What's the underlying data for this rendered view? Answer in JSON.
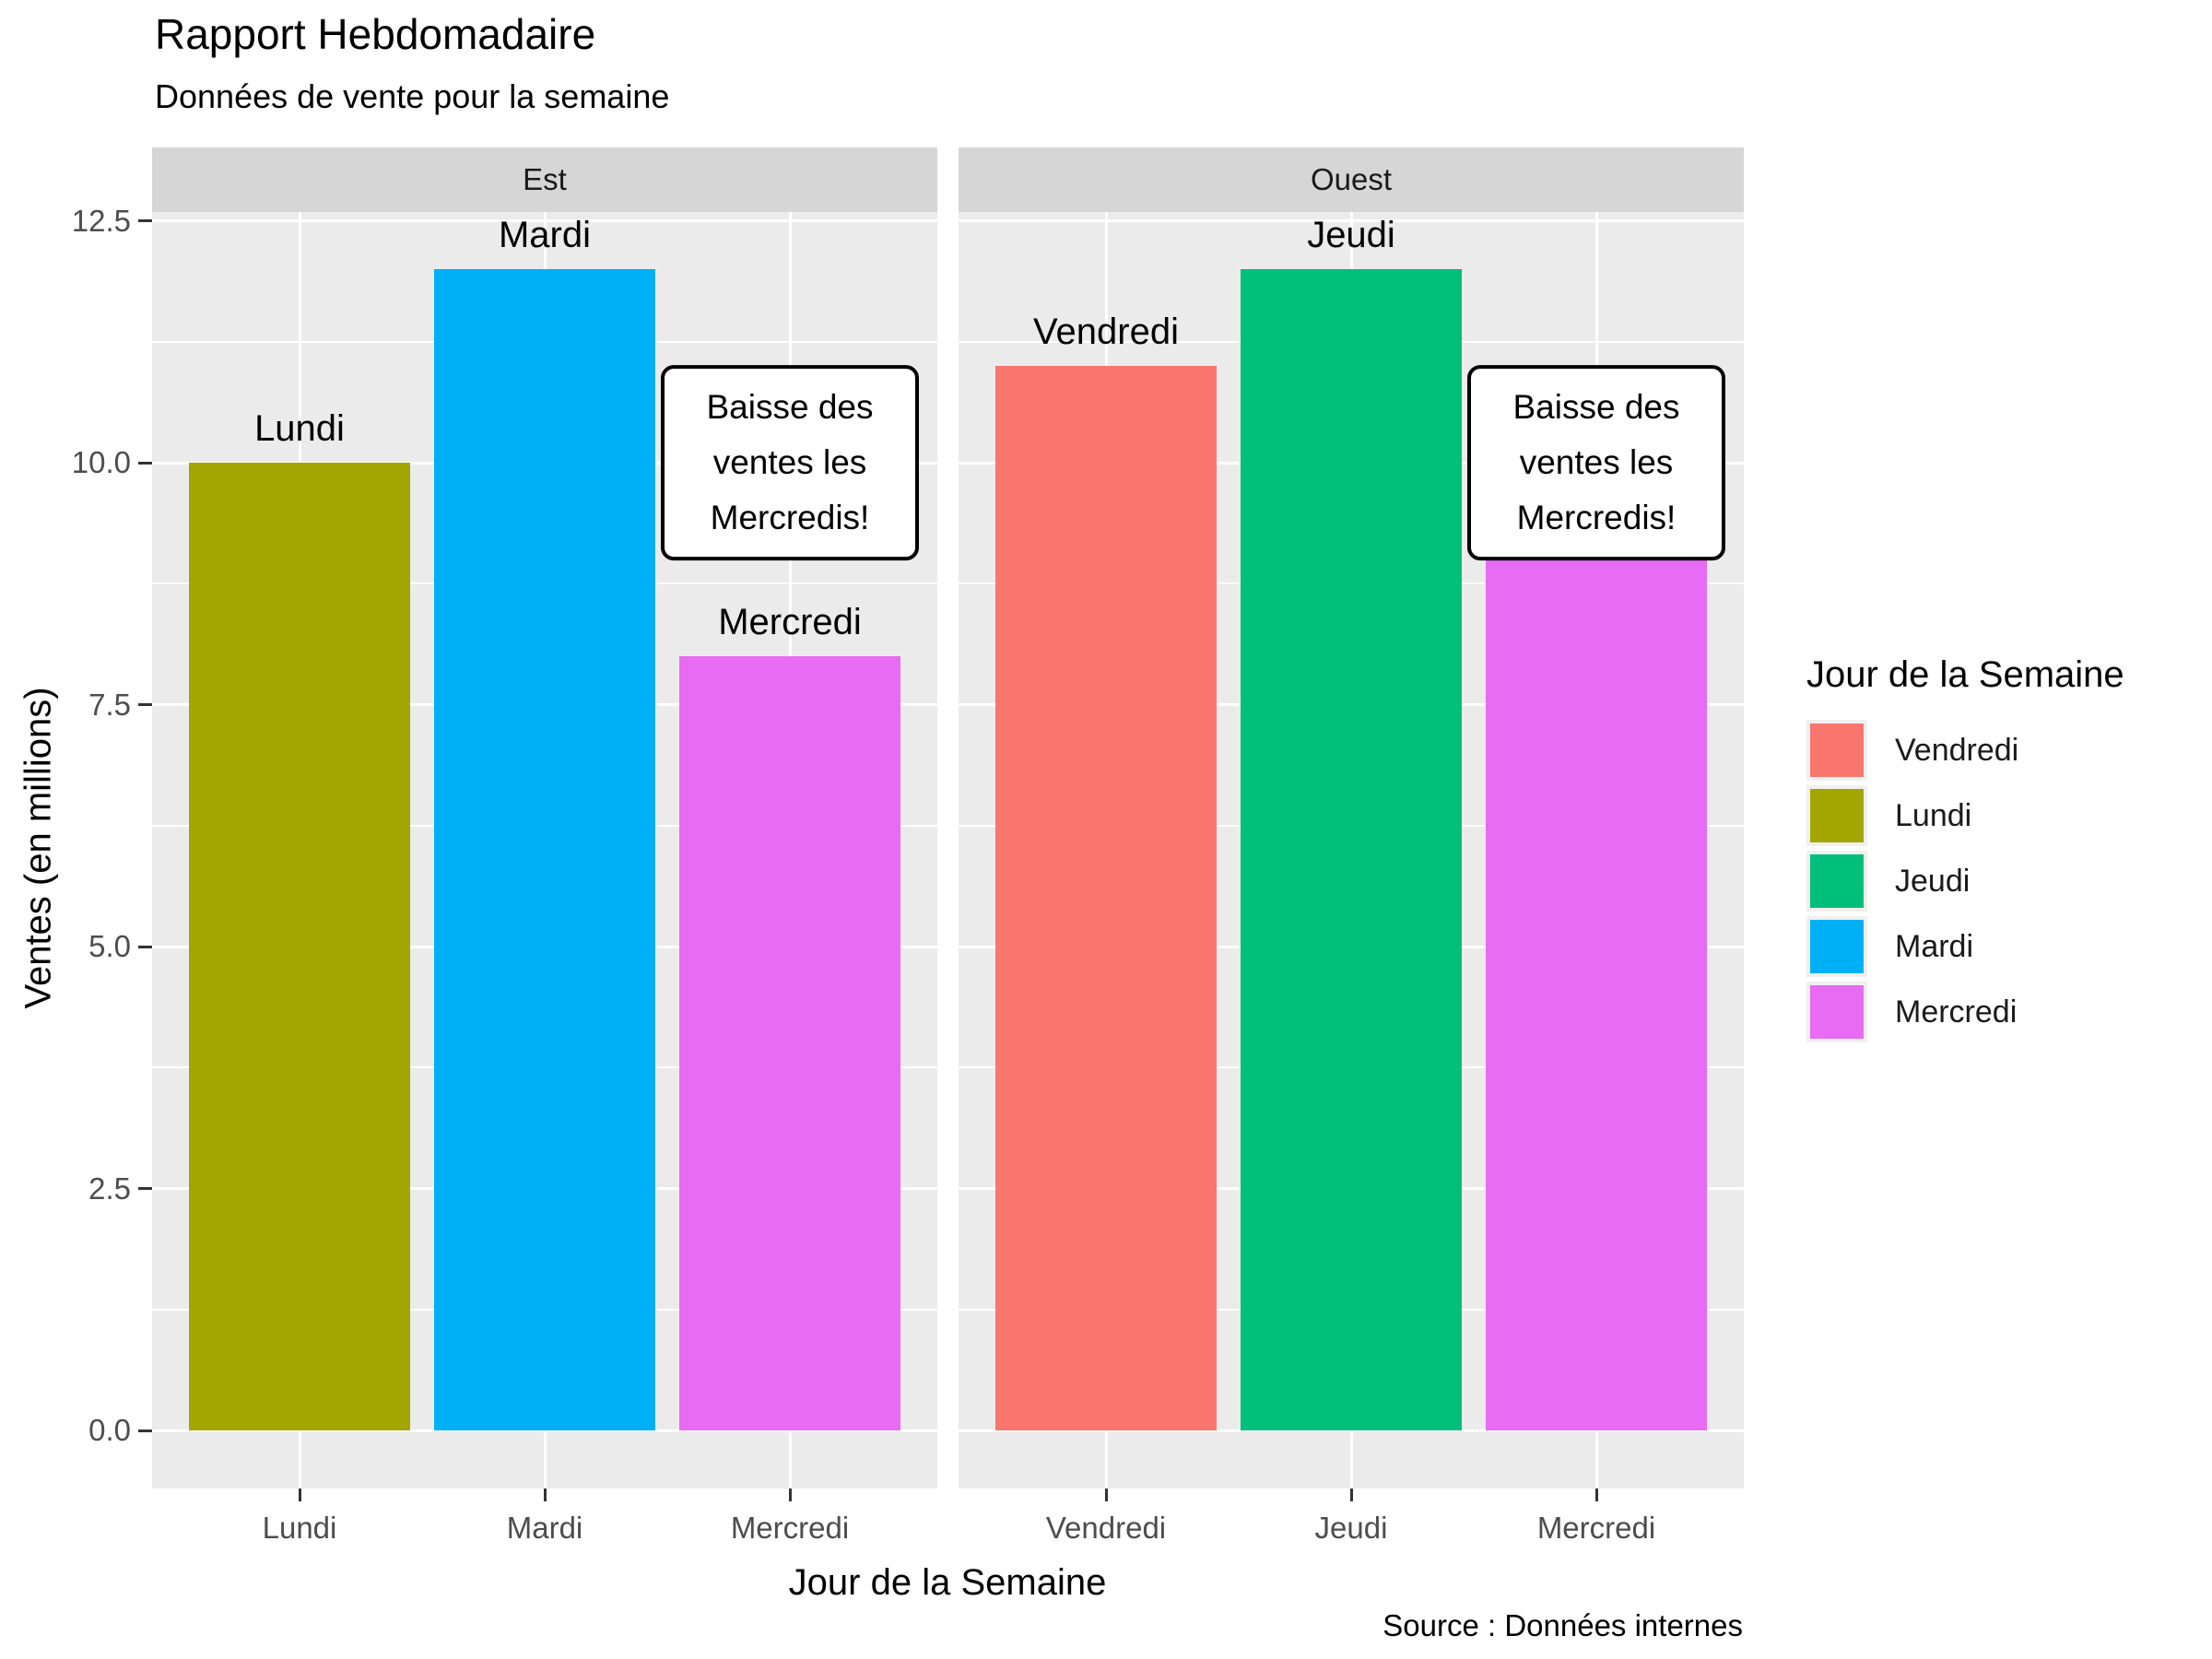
{
  "title": "Rapport Hebdomadaire",
  "subtitle": "Données de vente pour la semaine",
  "caption": "Source : Données internes",
  "axes": {
    "x_title": "Jour de la Semaine",
    "y_title": "Ventes (en millions)",
    "y_ticks": [
      "0.0",
      "2.5",
      "5.0",
      "7.5",
      "10.0",
      "12.5"
    ]
  },
  "legend": {
    "title": "Jour de la Semaine",
    "position": "right",
    "items": [
      {
        "label": "Vendredi",
        "color": "#F8766D"
      },
      {
        "label": "Lundi",
        "color": "#A3A500"
      },
      {
        "label": "Jeudi",
        "color": "#00BF7D"
      },
      {
        "label": "Mardi",
        "color": "#00B0F6"
      },
      {
        "label": "Mercredi",
        "color": "#E76BF3"
      }
    ]
  },
  "colors": {
    "panel_background": "#EBEBEB",
    "strip_background": "#D6D6D6",
    "gridline": "#FFFFFF",
    "axis_text": "#4D4D4D",
    "tick_mark": "#333333",
    "annotation_border": "#000000",
    "annotation_background": "#FFFFFF"
  },
  "chart_data": {
    "type": "bar",
    "title": "Rapport Hebdomadaire",
    "subtitle": "Données de vente pour la semaine",
    "caption": "Source : Données internes",
    "xlabel": "Jour de la Semaine",
    "ylabel": "Ventes (en millions)",
    "ylim": [
      0,
      13.2
    ],
    "grid": true,
    "y_major_ticks": [
      0,
      2.5,
      5,
      7.5,
      10,
      12.5
    ],
    "y_minor_ticks": [
      1.25,
      3.75,
      6.25,
      8.75,
      11.25
    ],
    "legend_position": "right",
    "legend_title": "Jour de la Semaine",
    "annotation_y": 10,
    "facets": [
      {
        "name": "Est",
        "categories": [
          "Lundi",
          "Mardi",
          "Mercredi"
        ],
        "values": [
          10,
          12,
          8
        ],
        "colors": [
          "#A3A500",
          "#00B0F6",
          "#E76BF3"
        ],
        "bar_labels": [
          "Lundi",
          "Mardi",
          "Mercredi"
        ],
        "annotation": "Baisse des ventes les Mercredis!"
      },
      {
        "name": "Ouest",
        "categories": [
          "Vendredi",
          "Jeudi",
          "Mercredi"
        ],
        "values": [
          11,
          12,
          9
        ],
        "colors": [
          "#F8766D",
          "#00BF7D",
          "#E76BF3"
        ],
        "bar_labels": [
          "Vendredi",
          "Jeudi",
          ""
        ],
        "annotation": "Baisse des ventes les Mercredis!"
      }
    ]
  }
}
